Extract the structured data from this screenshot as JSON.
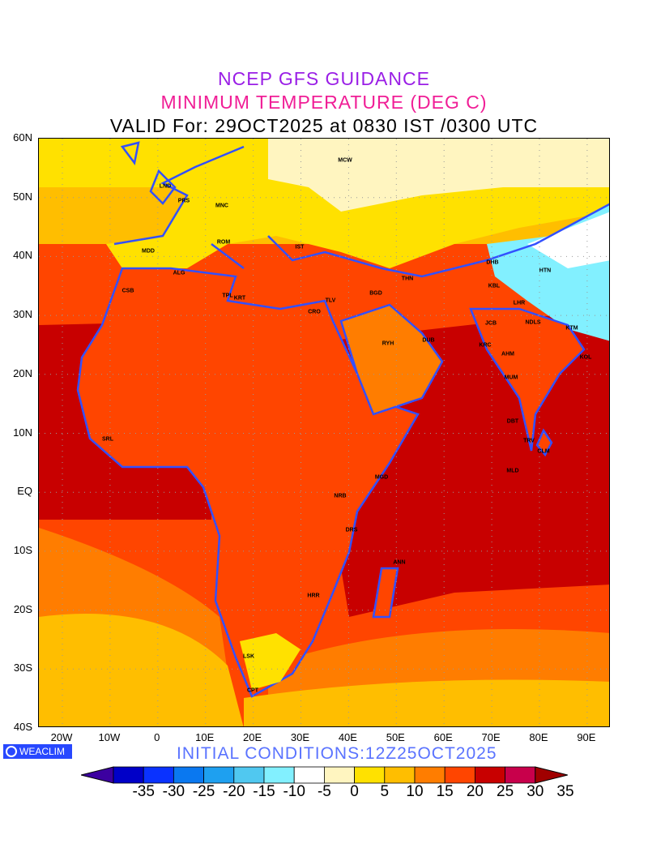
{
  "header": {
    "line1": "NCEP GFS GUIDANCE",
    "line2": "MINIMUM TEMPERATURE (DEG C)",
    "line3": "VALID For: 29OCT2025 at 0830 IST /0300 UTC"
  },
  "axes": {
    "lat_labels": [
      "60N",
      "50N",
      "40N",
      "30N",
      "20N",
      "10N",
      "EQ",
      "10S",
      "20S",
      "30S",
      "40S"
    ],
    "lon_labels": [
      "20W",
      "10W",
      "0",
      "10E",
      "20E",
      "30E",
      "40E",
      "50E",
      "60E",
      "70E",
      "80E",
      "90E"
    ]
  },
  "stations": [
    "MCW",
    "LND",
    "PRS",
    "MNC",
    "MDD",
    "ROM",
    "IST",
    "ALG",
    "CSB",
    "TPL",
    "KRT",
    "TLV",
    "CRO",
    "BGD",
    "THN",
    "DHB",
    "HTN",
    "KBL",
    "LHR",
    "NDLS",
    "KTM",
    "JCB",
    "KRC",
    "AHM",
    "DUB",
    "RYH",
    "MUM",
    "KOL",
    "DBT",
    "TRV",
    "CLM",
    "MLD",
    "SRL",
    "MGD",
    "NRB",
    "DRS",
    "ANN",
    "HRR",
    "LSK",
    "CPT"
  ],
  "logo": "WEACLIM",
  "initial_conditions": "INITIAL CONDITIONS:12Z25OCT2025",
  "colorbar": {
    "labels": [
      "-35",
      "-30",
      "-25",
      "-20",
      "-15",
      "-10",
      "-5",
      "0",
      "5",
      "10",
      "15",
      "20",
      "25",
      "30",
      "35"
    ],
    "colors": [
      "#0000c8",
      "#0a32ff",
      "#0a78f0",
      "#1ea0f0",
      "#50c8f0",
      "#82f0ff",
      "#ffffff",
      "#fff5c0",
      "#ffe100",
      "#ffbe00",
      "#ff7d00",
      "#ff4500",
      "#c80000",
      "#c8004b"
    ],
    "under_color": "#3c00a0",
    "over_color": "#a00000"
  },
  "outline_color": "#3250ff"
}
